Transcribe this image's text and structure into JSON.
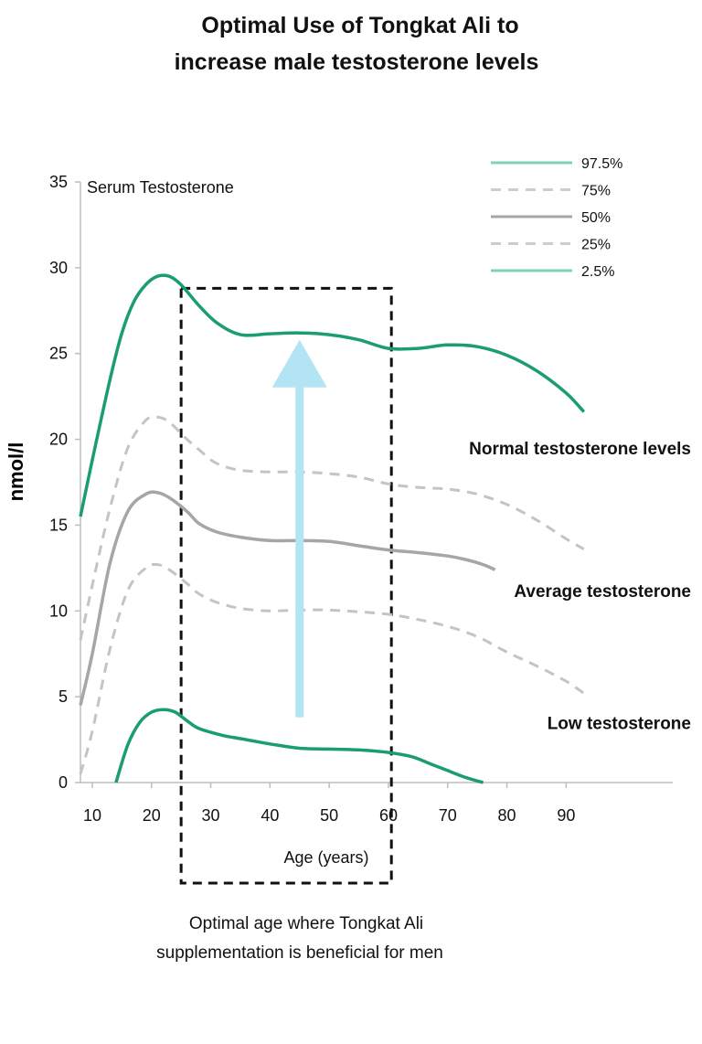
{
  "chart_data": {
    "type": "line",
    "title": [
      "Optimal Use of Tongkat Ali to",
      "increase male testosterone levels"
    ],
    "ylabel": "nmol/l",
    "y_inner_label": "Serum Testosterone",
    "xlabel": "Age (years)",
    "xlim": [
      8,
      108
    ],
    "ylim": [
      0,
      35
    ],
    "xticks": [
      10,
      20,
      30,
      40,
      50,
      60,
      70,
      80,
      90
    ],
    "yticks": [
      0,
      5,
      10,
      15,
      20,
      25,
      30,
      35
    ],
    "grid": false,
    "legend_position": "top-right",
    "series": [
      {
        "name": "97.5%",
        "style": "solid",
        "color": "#1a9c74",
        "legend_color": "#7fd3b4",
        "x": [
          8,
          10,
          13,
          15,
          17,
          19,
          21,
          23,
          25,
          28,
          31,
          35,
          40,
          45,
          50,
          55,
          60,
          65,
          70,
          75,
          80,
          85,
          90,
          93
        ],
        "y": [
          15.5,
          18.8,
          23.5,
          26.2,
          28.0,
          29.0,
          29.5,
          29.5,
          29.0,
          27.8,
          26.8,
          26.1,
          26.15,
          26.2,
          26.1,
          25.8,
          25.3,
          25.3,
          25.5,
          25.4,
          24.9,
          24.0,
          22.7,
          21.6
        ]
      },
      {
        "name": "75%",
        "style": "dashed",
        "color": "#c4c4c4",
        "legend_color": "#cdcdcd",
        "x": [
          8,
          10,
          13,
          16,
          19,
          21,
          23,
          26,
          28,
          31,
          35,
          40,
          45,
          50,
          55,
          60,
          65,
          70,
          75,
          80,
          85,
          90,
          93
        ],
        "y": [
          8.3,
          11.5,
          16.0,
          19.5,
          21.1,
          21.3,
          21.0,
          20.0,
          19.4,
          18.6,
          18.2,
          18.1,
          18.1,
          18.0,
          17.8,
          17.4,
          17.2,
          17.1,
          16.8,
          16.2,
          15.3,
          14.2,
          13.6
        ]
      },
      {
        "name": "50%",
        "style": "solid",
        "color": "#a6a6a6",
        "legend_color": "#a6a6a6",
        "x": [
          8,
          10,
          13,
          16,
          19,
          21,
          23,
          26,
          28,
          31,
          35,
          40,
          45,
          50,
          55,
          60,
          65,
          70,
          73,
          76,
          78
        ],
        "y": [
          4.5,
          7.5,
          12.8,
          15.8,
          16.8,
          16.9,
          16.6,
          15.8,
          15.1,
          14.6,
          14.3,
          14.1,
          14.1,
          14.05,
          13.8,
          13.55,
          13.4,
          13.2,
          13.0,
          12.7,
          12.4
        ]
      },
      {
        "name": "25%",
        "style": "dashed",
        "color": "#c4c4c4",
        "legend_color": "#cdcdcd",
        "x": [
          8,
          10,
          13,
          16,
          19,
          21,
          23,
          26,
          28,
          31,
          35,
          40,
          45,
          50,
          55,
          60,
          65,
          70,
          75,
          80,
          85,
          90,
          93
        ],
        "y": [
          0.5,
          3.0,
          7.8,
          11.2,
          12.5,
          12.7,
          12.4,
          11.6,
          11.0,
          10.5,
          10.15,
          10.0,
          10.05,
          10.05,
          9.95,
          9.8,
          9.5,
          9.1,
          8.5,
          7.6,
          6.8,
          5.9,
          5.2
        ]
      },
      {
        "name": "2.5%",
        "style": "solid",
        "color": "#1a9c74",
        "legend_color": "#7fd3b4",
        "x": [
          14,
          16,
          18,
          20,
          22,
          24,
          26,
          28,
          32,
          36,
          40,
          45,
          50,
          55,
          60,
          64,
          67,
          70,
          73,
          76
        ],
        "y": [
          0,
          2.2,
          3.5,
          4.1,
          4.25,
          4.1,
          3.6,
          3.15,
          2.75,
          2.5,
          2.25,
          2.0,
          1.95,
          1.9,
          1.75,
          1.5,
          1.1,
          0.7,
          0.3,
          0
        ]
      }
    ],
    "annotations": [
      {
        "text": "Normal testosterone levels",
        "x_anchor": 95,
        "y_at": 19.5
      },
      {
        "text": "Average testosterone",
        "x_anchor": 95,
        "y_at": 11.2
      },
      {
        "text": "Low testosterone",
        "x_anchor": 92,
        "y_at": 3.5
      }
    ],
    "highlight_box": {
      "x_start": 25,
      "x_end": 60.5,
      "y_top": 28.8
    },
    "arrow": {
      "x": 45,
      "y_from": 3.8,
      "y_to": 25.8,
      "color": "#b3e4f4"
    },
    "caption": [
      "Optimal age where Tongkat Ali",
      "supplementation is beneficial for men"
    ]
  }
}
